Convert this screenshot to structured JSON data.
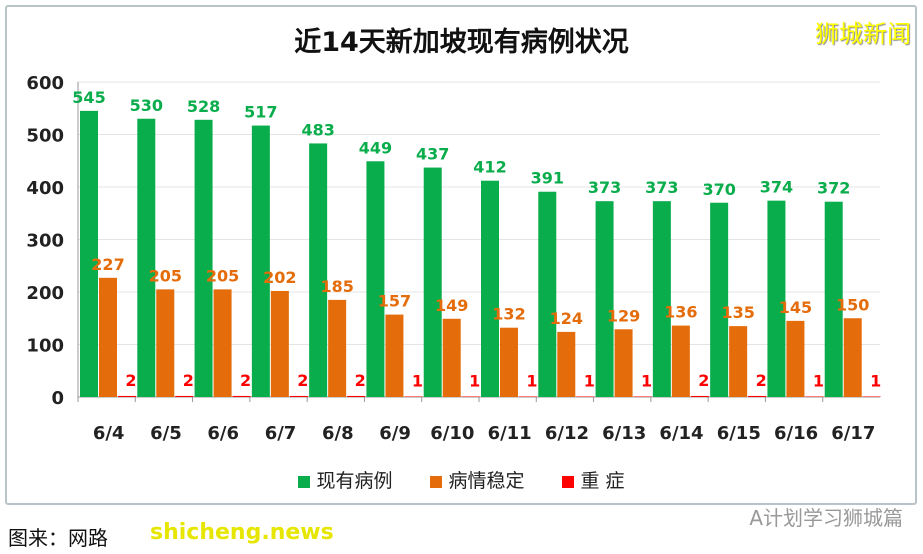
{
  "chart_data": {
    "type": "bar",
    "title": "近14天新加坡现有病例状况",
    "categories": [
      "6/4",
      "6/5",
      "6/6",
      "6/7",
      "6/8",
      "6/9",
      "6/10",
      "6/11",
      "6/12",
      "6/13",
      "6/14",
      "6/15",
      "6/16",
      "6/17"
    ],
    "series": [
      {
        "name": "现有病例",
        "color": "#0aad4c",
        "values": [
          545,
          530,
          528,
          517,
          483,
          449,
          437,
          412,
          391,
          373,
          373,
          370,
          374,
          372
        ]
      },
      {
        "name": "病情稳定",
        "color": "#e46c0a",
        "values": [
          227,
          205,
          205,
          202,
          185,
          157,
          149,
          132,
          124,
          129,
          136,
          135,
          145,
          150
        ]
      },
      {
        "name": "重 症",
        "color": "#ff0000",
        "values": [
          2,
          2,
          2,
          2,
          2,
          1,
          1,
          1,
          1,
          1,
          2,
          2,
          1,
          1
        ]
      }
    ],
    "yticks": [
      "0",
      "100",
      "200",
      "300",
      "400",
      "500",
      "600"
    ],
    "ylim": [
      0,
      600
    ],
    "grid": true,
    "legend": "bottom"
  },
  "brand": "狮城新闻",
  "watermark": "A计划学习狮城篇",
  "source": "图来：网路",
  "source_watermark": "shicheng.news"
}
